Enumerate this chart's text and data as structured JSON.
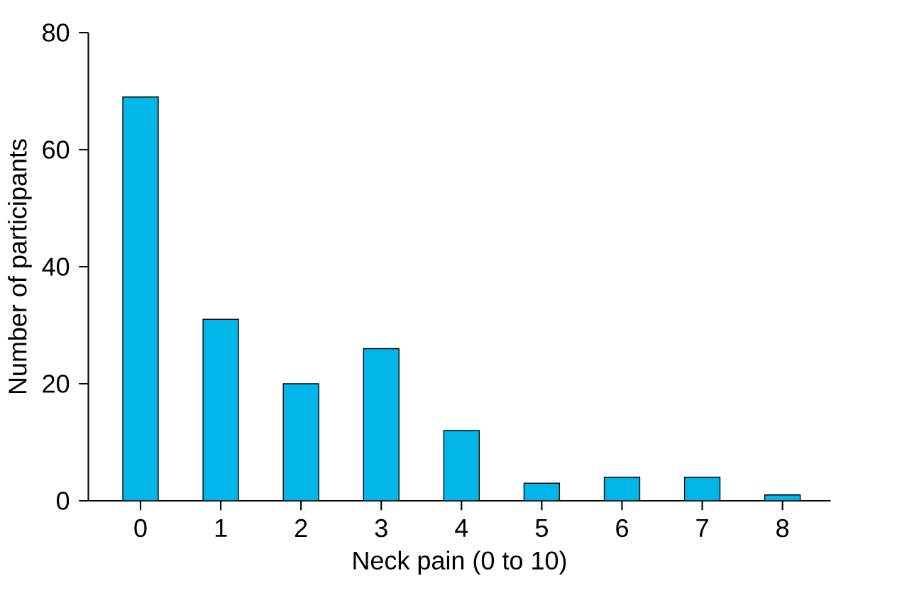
{
  "chart_data": {
    "type": "bar",
    "xlabel": "Neck pain (0 to 10)",
    "ylabel": "Number of participants",
    "categories": [
      "0",
      "1",
      "2",
      "3",
      "4",
      "5",
      "6",
      "7",
      "8"
    ],
    "values": [
      69,
      31,
      20,
      26,
      12,
      3,
      4,
      4,
      1
    ],
    "color": "#00b5e8",
    "ylim": [
      0,
      80
    ],
    "yticks": [
      0,
      20,
      40,
      60,
      80
    ],
    "grid": false
  }
}
